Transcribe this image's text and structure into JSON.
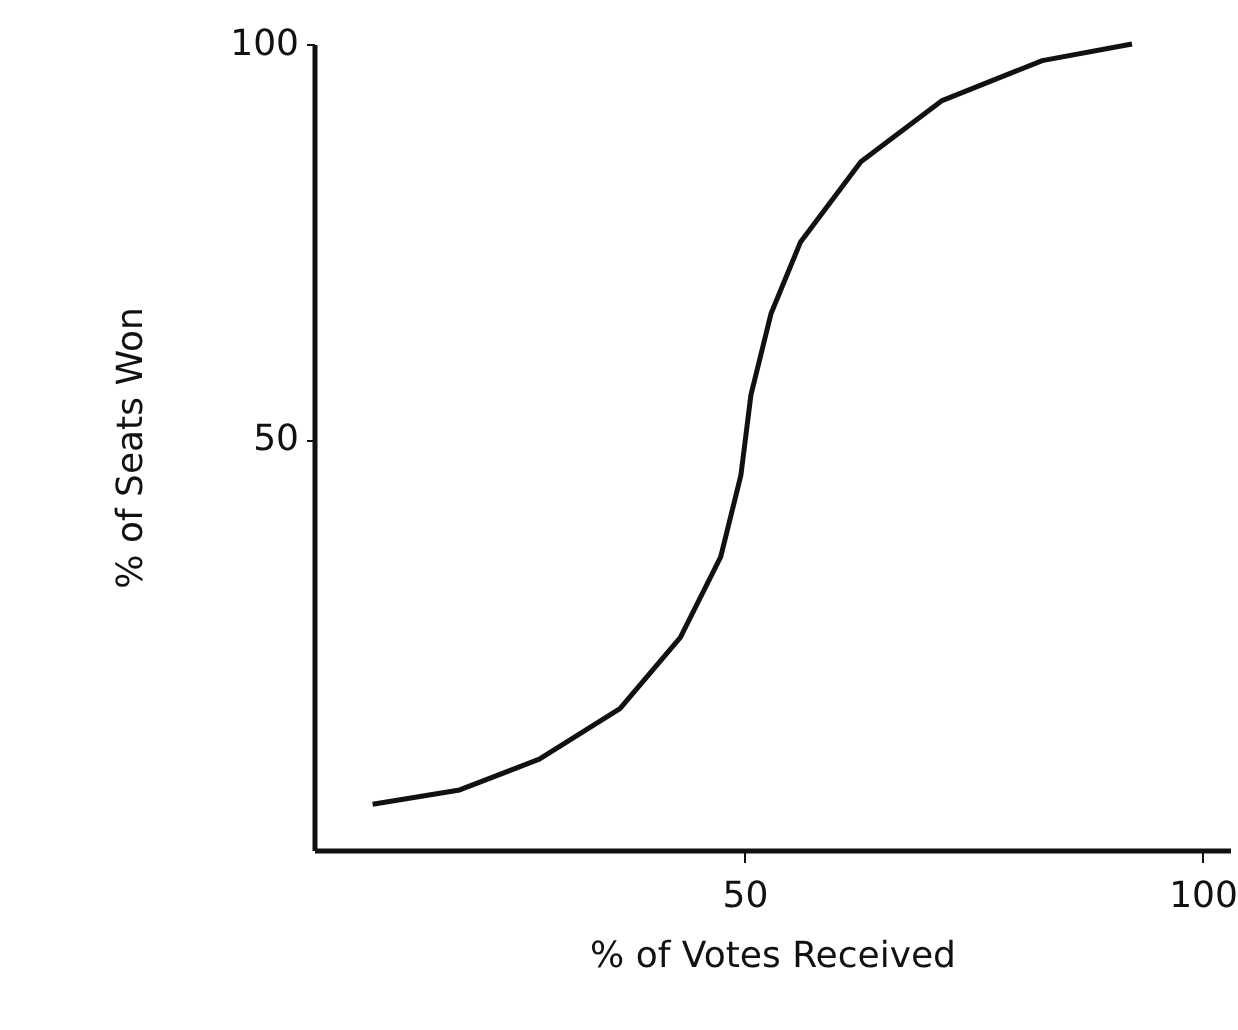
{
  "chart_data": {
    "type": "line",
    "xlabel": "% of Votes Received",
    "ylabel": "% of Seats Won",
    "x": [
      9.4,
      18.9,
      27.6,
      36.4,
      43.0,
      47.4,
      49.6,
      50.7,
      52.9,
      56.1,
      62.7,
      71.5,
      82.5,
      92.3
    ],
    "series": [
      {
        "color": "#111111",
        "values": [
          3.8,
          5.6,
          9.5,
          15.9,
          24.9,
          35.1,
          45.4,
          55.6,
          65.9,
          74.9,
          85.1,
          92.8,
          97.9,
          100
        ]
      }
    ],
    "xlim": [
      3,
      103
    ],
    "ylim": [
      -2,
      100
    ],
    "xticks": [
      50,
      100
    ],
    "yticks": [
      50,
      100
    ],
    "grid": false,
    "marker": "none",
    "line_style": "solid"
  }
}
